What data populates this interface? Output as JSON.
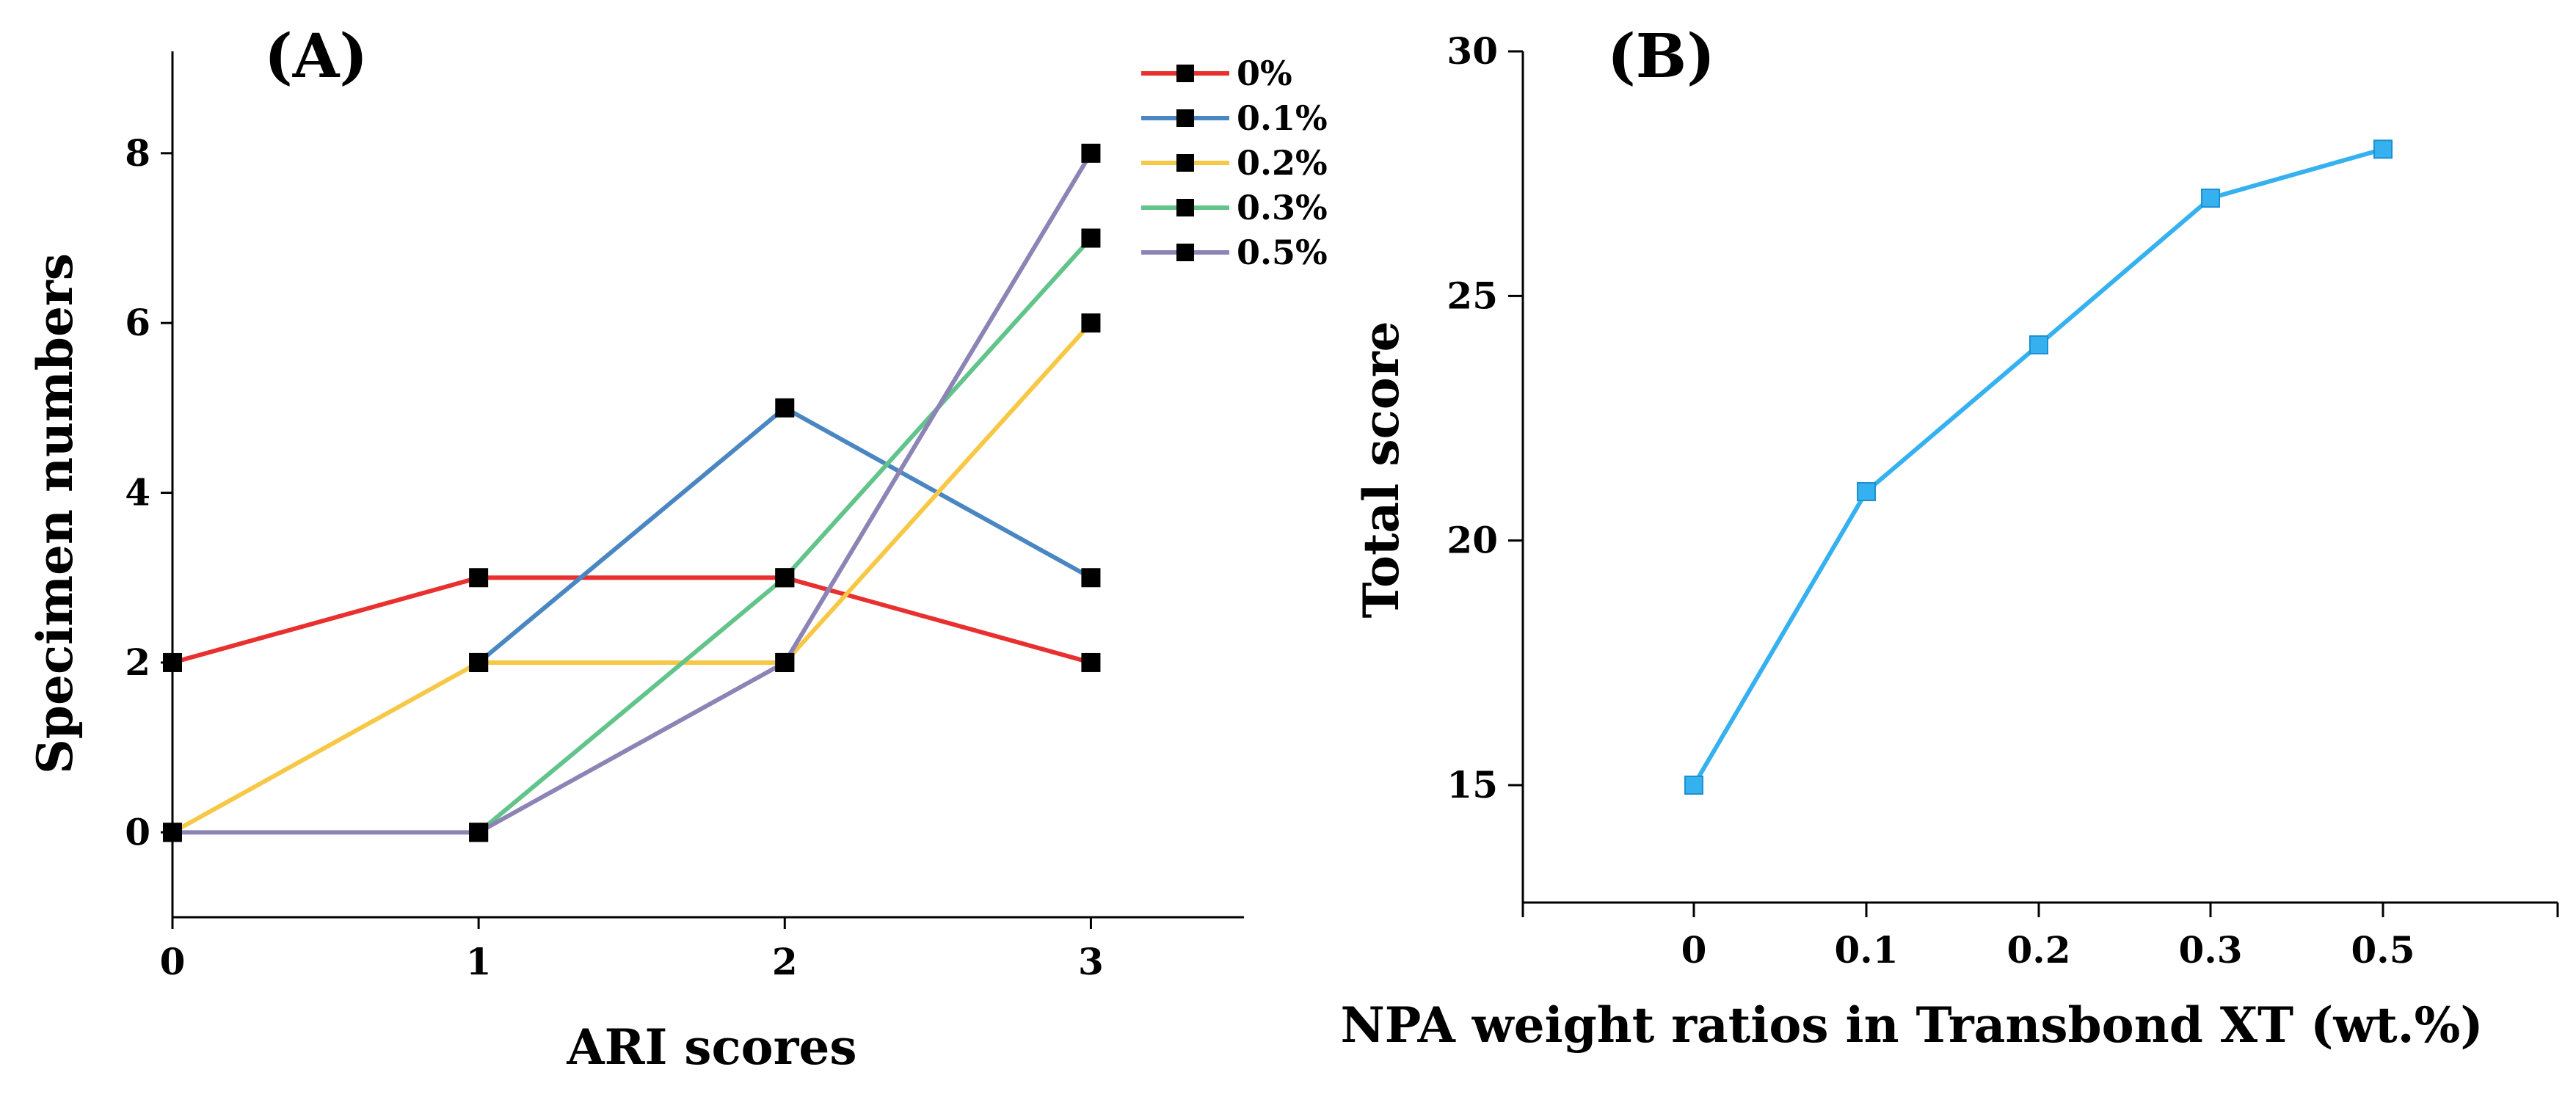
{
  "chart_data": [
    {
      "type": "line",
      "panel_label": "(A)",
      "xlabel": "ARI scores",
      "ylabel": "Specimen numbers",
      "x": [
        0,
        1,
        2,
        3
      ],
      "xticks": [
        "0",
        "1",
        "2",
        "3"
      ],
      "yticks": [
        "0",
        "2",
        "4",
        "6",
        "8"
      ],
      "xlim": [
        0,
        3.5
      ],
      "ylim": [
        -1,
        9.2
      ],
      "grid": false,
      "legend_position": "top-right",
      "marker": "black-square",
      "series": [
        {
          "name": "0%",
          "color": "#e8302f",
          "values": [
            2,
            3,
            3,
            2
          ]
        },
        {
          "name": "0.1%",
          "color": "#4a86c2",
          "values": [
            null,
            2,
            5,
            3
          ]
        },
        {
          "name": "0.2%",
          "color": "#f6c846",
          "values": [
            0,
            2,
            2,
            6
          ]
        },
        {
          "name": "0.3%",
          "color": "#62c48a",
          "values": [
            null,
            0,
            3,
            7
          ]
        },
        {
          "name": "0.5%",
          "color": "#8c84b5",
          "values": [
            0,
            0,
            2,
            8
          ]
        }
      ]
    },
    {
      "type": "line",
      "panel_label": "(B)",
      "xlabel": "NPA weight ratios in Transbond XT (wt.%)",
      "ylabel": "Total score",
      "categories": [
        "0",
        "0.1",
        "0.2",
        "0.3",
        "0.5"
      ],
      "yticks": [
        "15",
        "20",
        "25",
        "30"
      ],
      "ylim": [
        12.6,
        30
      ],
      "grid": false,
      "series": [
        {
          "name": "",
          "color": "#36b1ef",
          "values": [
            15,
            21,
            24,
            27,
            28
          ]
        }
      ]
    }
  ]
}
